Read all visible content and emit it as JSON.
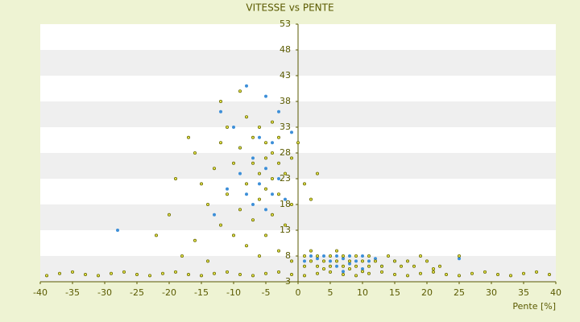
{
  "chart_data": {
    "type": "scatter",
    "title": "VITESSE vs PENTE",
    "x_label": "Pente [%]",
    "xlim": [
      -40,
      40
    ],
    "xticks": [
      -40,
      -35,
      -30,
      -25,
      -20,
      -15,
      -10,
      -5,
      0,
      5,
      10,
      15,
      20,
      25,
      30,
      35,
      40
    ],
    "ylim": [
      3,
      53
    ],
    "yticks": [
      3,
      8,
      13,
      18,
      23,
      28,
      33,
      38,
      43,
      48,
      53
    ],
    "grid": true,
    "series": [
      {
        "color": "#3d8fd8",
        "x": [
          -28,
          -12,
          -10,
          -9,
          -9,
          -8,
          -8,
          -7,
          -7,
          -6,
          -6,
          -5,
          -5,
          -5,
          -4,
          -4,
          -3,
          -3,
          -2,
          -1,
          -11,
          -13,
          1,
          2,
          3,
          4,
          5,
          6,
          6,
          7,
          8,
          8,
          9,
          10,
          11,
          12,
          13,
          15,
          25,
          7,
          10
        ],
        "values": [
          13,
          36,
          33,
          29,
          24,
          41,
          20,
          27,
          18,
          31,
          22,
          25,
          39,
          17,
          30,
          20,
          36,
          23,
          19,
          32,
          21,
          16,
          7,
          8,
          7.5,
          8,
          7,
          8,
          6,
          7.5,
          8,
          6.5,
          7,
          8,
          7,
          7.5,
          6,
          7,
          7.5,
          5,
          5.5
        ]
      },
      {
        "color": "#6b6b00",
        "x": [
          -39,
          -37,
          -35,
          -33,
          -31,
          -29,
          -27,
          -25,
          -23,
          -21,
          -19,
          -17,
          -15,
          -13,
          -11,
          -9,
          -7,
          -5,
          -3,
          -1,
          1,
          3,
          5,
          7,
          9,
          11,
          13,
          15,
          17,
          19,
          21,
          23,
          25,
          27,
          29,
          31,
          33,
          35,
          37,
          39,
          -17,
          -16,
          -15,
          -14,
          -13,
          -12,
          -12,
          -11,
          -11,
          -10,
          -10,
          -9,
          -9,
          -9,
          -8,
          -8,
          -8,
          -7,
          -7,
          -7,
          -6,
          -6,
          -6,
          -6,
          -5,
          -5,
          -5,
          -5,
          -4,
          -4,
          -4,
          -4,
          -3,
          -3,
          -3,
          -3,
          -2,
          -2,
          -1,
          -1,
          -1,
          0,
          -20,
          -18,
          -22,
          -14,
          -16,
          -19,
          -12,
          1,
          1,
          2,
          2,
          3,
          3,
          4,
          4,
          5,
          5,
          6,
          6,
          7,
          7,
          8,
          8,
          9,
          9,
          10,
          10,
          11,
          11,
          12,
          13,
          14,
          15,
          16,
          17,
          18,
          19,
          20,
          21,
          22,
          25,
          3,
          2,
          1
        ],
        "values": [
          4.2,
          4.6,
          4.9,
          4.4,
          4.2,
          4.6,
          4.9,
          4.4,
          4.2,
          4.6,
          4.9,
          4.4,
          4.2,
          4.6,
          4.9,
          4.4,
          4.2,
          4.6,
          4.9,
          4.4,
          4.2,
          4.6,
          4.9,
          4.4,
          4.2,
          4.6,
          4.9,
          4.4,
          4.2,
          4.6,
          4.9,
          4.4,
          4.2,
          4.6,
          4.9,
          4.4,
          4.2,
          4.6,
          4.9,
          4.4,
          31,
          28,
          22,
          18,
          25,
          30,
          14,
          20,
          33,
          26,
          12,
          40,
          29,
          17,
          35,
          22,
          10,
          31,
          26,
          15,
          33,
          24,
          19,
          8,
          30,
          27,
          21,
          12,
          34,
          28,
          23,
          16,
          31,
          26,
          20,
          9,
          24,
          14,
          27,
          18,
          7,
          30,
          16,
          8,
          12,
          7,
          11,
          23,
          38,
          8,
          6,
          7,
          9,
          6,
          8,
          7,
          5.5,
          8,
          6,
          7,
          9,
          6,
          8,
          7,
          5.5,
          8,
          6,
          7,
          5,
          8,
          6,
          7,
          6,
          8,
          7,
          6,
          7,
          6,
          8,
          7,
          5.5,
          6,
          8,
          24,
          19,
          22
        ]
      }
    ]
  }
}
